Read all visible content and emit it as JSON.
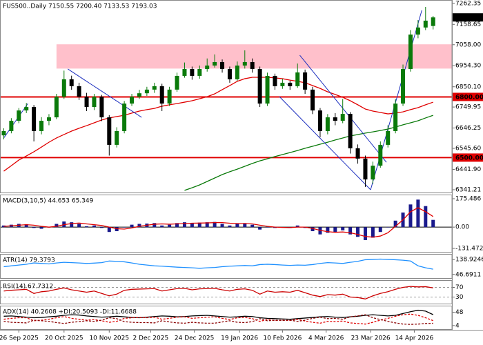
{
  "chart_data": [
    {
      "type": "candlestick",
      "title": "FUS500..Daily 7150.55 7200.40 7133.53 7193.03",
      "xlim": [
        -0.5,
        59.5
      ],
      "xticks": [
        {
          "value": 2,
          "label": "26 Sep 2025"
        },
        {
          "value": 8,
          "label": "20 Oct 2025"
        },
        {
          "value": 14,
          "label": "10 Nov 2025"
        },
        {
          "value": 19.5,
          "label": "2 Dec 2025"
        },
        {
          "value": 25.3,
          "label": "24 Dec 2025"
        },
        {
          "value": 31.3,
          "label": "19 Jan 2026"
        },
        {
          "value": 37,
          "label": "10 Feb 2026"
        },
        {
          "value": 42.8,
          "label": "4 Mar 2026"
        },
        {
          "value": 48.7,
          "label": "23 Mar 2026"
        },
        {
          "value": 54.5,
          "label": "14 Apr 2026"
        }
      ],
      "ylim": [
        6324,
        7279
      ],
      "yticks": [
        7262.35,
        7158.65,
        {
          "value": 7058,
          "label": "7058.00"
        },
        {
          "value": 6954.3,
          "label": "6954.30"
        },
        {
          "value": 6850.1,
          "label": "6850.10"
        },
        6749.95,
        6646.25,
        {
          "value": 6545.6,
          "label": "6545.60"
        },
        {
          "value": 6441.9,
          "label": "6441.90"
        },
        6341.21
      ],
      "up_color": "#0a7a0a",
      "down_color": "#000000",
      "ohlc": [
        [
          6610,
          6645,
          6590,
          6631
        ],
        [
          6631,
          6695,
          6620,
          6682
        ],
        [
          6682,
          6745,
          6670,
          6733
        ],
        [
          6733,
          6770,
          6720,
          6750
        ],
        [
          6750,
          6760,
          6580,
          6631
        ],
        [
          6631,
          6700,
          6615,
          6682
        ],
        [
          6682,
          6715,
          6660,
          6699
        ],
        [
          6699,
          6815,
          6690,
          6801
        ],
        [
          6801,
          6930,
          6790,
          6887
        ],
        [
          6887,
          6905,
          6835,
          6853
        ],
        [
          6853,
          6870,
          6785,
          6801
        ],
        [
          6801,
          6820,
          6730,
          6750
        ],
        [
          6750,
          6815,
          6735,
          6801
        ],
        [
          6801,
          6810,
          6680,
          6699
        ],
        [
          6699,
          6710,
          6510,
          6563
        ],
        [
          6563,
          6650,
          6550,
          6631
        ],
        [
          6631,
          6780,
          6620,
          6767
        ],
        [
          6767,
          6815,
          6755,
          6801
        ],
        [
          6801,
          6835,
          6790,
          6818
        ],
        [
          6818,
          6850,
          6805,
          6836
        ],
        [
          6836,
          6870,
          6820,
          6853
        ],
        [
          6853,
          6865,
          6730,
          6767
        ],
        [
          6767,
          6850,
          6755,
          6836
        ],
        [
          6836,
          6920,
          6825,
          6904
        ],
        [
          6904,
          6970,
          6895,
          6938
        ],
        [
          6938,
          6950,
          6885,
          6904
        ],
        [
          6904,
          6955,
          6890,
          6938
        ],
        [
          6938,
          6990,
          6925,
          6955
        ],
        [
          6955,
          7010,
          6945,
          6972
        ],
        [
          6972,
          6985,
          6920,
          6938
        ],
        [
          6938,
          6950,
          6870,
          6887
        ],
        [
          6887,
          6975,
          6880,
          6955
        ],
        [
          6955,
          7030,
          6940,
          6972
        ],
        [
          6972,
          6990,
          6920,
          6938
        ],
        [
          6938,
          6950,
          6750,
          6767
        ],
        [
          6767,
          6920,
          6755,
          6904
        ],
        [
          6904,
          6915,
          6835,
          6853
        ],
        [
          6853,
          6890,
          6840,
          6870
        ],
        [
          6870,
          6880,
          6835,
          6853
        ],
        [
          6853,
          6965,
          6845,
          6921
        ],
        [
          6921,
          6935,
          6815,
          6836
        ],
        [
          6836,
          6850,
          6715,
          6733
        ],
        [
          6733,
          6745,
          6600,
          6631
        ],
        [
          6631,
          6715,
          6615,
          6699
        ],
        [
          6699,
          6720,
          6660,
          6682
        ],
        [
          6682,
          6790,
          6670,
          6716
        ],
        [
          6716,
          6725,
          6520,
          6546
        ],
        [
          6546,
          6565,
          6470,
          6495
        ],
        [
          6495,
          6510,
          6355,
          6392
        ],
        [
          6392,
          6480,
          6370,
          6460
        ],
        [
          6460,
          6580,
          6450,
          6563
        ],
        [
          6563,
          6660,
          6550,
          6631
        ],
        [
          6631,
          6790,
          6620,
          6767
        ],
        [
          6767,
          6960,
          6755,
          6938
        ],
        [
          6938,
          7130,
          6925,
          7108
        ],
        [
          7108,
          7180,
          7090,
          7143
        ],
        [
          7143,
          7245,
          7130,
          7177
        ],
        [
          7150.55,
          7200.4,
          7133.53,
          7193.03
        ]
      ],
      "lines": [
        {
          "color": "#e00000",
          "values": [
            6433,
            6460,
            6488,
            6508,
            6529,
            6552,
            6576,
            6597,
            6614,
            6631,
            6645,
            6658,
            6672,
            6686,
            6696,
            6703,
            6709,
            6720,
            6730,
            6737,
            6743,
            6754,
            6761,
            6767,
            6774,
            6781,
            6791,
            6801,
            6815,
            6836,
            6856,
            6877,
            6890,
            6897,
            6897,
            6897,
            6894,
            6890,
            6883,
            6877,
            6870,
            6856,
            6842,
            6825,
            6812,
            6798,
            6781,
            6761,
            6740,
            6730,
            6723,
            6716,
            6720,
            6726,
            6737,
            6747,
            6761,
            6774
          ]
        },
        {
          "color": "#0a7a0a",
          "values": [
            null,
            null,
            null,
            null,
            null,
            null,
            null,
            null,
            null,
            null,
            null,
            null,
            null,
            null,
            null,
            null,
            null,
            null,
            null,
            null,
            null,
            null,
            null,
            null,
            6338,
            6351,
            6365,
            6382,
            6399,
            6416,
            6430,
            6443,
            6457,
            6471,
            6484,
            6494,
            6505,
            6515,
            6525,
            6535,
            6546,
            6556,
            6566,
            6576,
            6587,
            6597,
            6607,
            6614,
            6621,
            6627,
            6634,
            6641,
            6651,
            6662,
            6672,
            6682,
            6696,
            6709
          ]
        }
      ],
      "zone": {
        "from": 6940,
        "to": 7060,
        "start": 7,
        "color": "#ffc0cb"
      },
      "level_color": "#e00000",
      "levels": [
        {
          "value": 6800,
          "label": "6800.00"
        },
        {
          "value": 6500,
          "label": "6500.00"
        }
      ],
      "trendline_color": "#1c2fbf",
      "trendlines": [
        {
          "x": [
            0,
            3.2
          ],
          "y": [
            6597,
            6767
          ]
        },
        {
          "x": [
            8.5,
            18.3
          ],
          "y": [
            6938,
            6699
          ]
        },
        {
          "x": [
            39.3,
            50.8
          ],
          "y": [
            7006,
            6477
          ]
        },
        {
          "x": [
            36.6,
            48.7
          ],
          "y": [
            6801,
            6341
          ]
        },
        {
          "x": [
            48.7,
            55.5
          ],
          "y": [
            6341,
            7228
          ]
        }
      ],
      "last_price": 7193.03
    },
    {
      "type": "macd",
      "title": "MACD(3,10,5) 44.653 65.349",
      "ylim": [
        -157,
        201
      ],
      "yticks": [
        175.486,
        {
          "value": 0,
          "label": "0.00"
        },
        -131.472
      ],
      "color": "#1a1a8c",
      "signal_color": "#e00000",
      "values": [
        10,
        15,
        20,
        18,
        -5,
        -10,
        0,
        20,
        35,
        30,
        20,
        5,
        10,
        -5,
        -30,
        -25,
        0,
        15,
        20,
        22,
        25,
        10,
        15,
        25,
        30,
        25,
        28,
        30,
        32,
        20,
        10,
        20,
        25,
        15,
        -15,
        0,
        -5,
        0,
        -5,
        10,
        -5,
        -25,
        -45,
        -35,
        -30,
        -20,
        -45,
        -60,
        -80,
        -65,
        -30,
        0,
        40,
        90,
        140,
        170,
        130,
        44.653
      ],
      "signal": [
        5,
        8,
        12,
        15,
        12,
        5,
        0,
        5,
        15,
        22,
        25,
        20,
        15,
        10,
        0,
        -10,
        -12,
        -5,
        5,
        12,
        18,
        20,
        18,
        20,
        22,
        24,
        25,
        26,
        28,
        28,
        24,
        22,
        22,
        20,
        12,
        5,
        0,
        -2,
        -3,
        0,
        0,
        -8,
        -20,
        -28,
        -32,
        -30,
        -35,
        -45,
        -58,
        -62,
        -55,
        -35,
        5,
        45,
        95,
        120,
        95,
        65.349
      ]
    },
    {
      "type": "line",
      "title": "ATR(14) 79.3793",
      "ylim": [
        20,
        174
      ],
      "yticks": [
        138.9246,
        46.6911
      ],
      "color": "#1e90ff",
      "values": [
        95,
        100,
        105,
        110,
        118,
        115,
        112,
        118,
        122,
        120,
        118,
        115,
        117,
        120,
        130,
        128,
        125,
        118,
        110,
        105,
        100,
        98,
        95,
        92,
        90,
        88,
        85,
        88,
        90,
        95,
        98,
        100,
        102,
        100,
        108,
        110,
        108,
        105,
        103,
        105,
        104,
        108,
        115,
        120,
        118,
        115,
        122,
        128,
        138,
        140,
        142,
        140,
        138,
        135,
        130,
        100,
        88,
        79.3793
      ]
    },
    {
      "type": "line",
      "title": "RSI(14) 67.7312",
      "ylim": [
        0,
        100
      ],
      "yticks": [
        30,
        70
      ],
      "grid": true,
      "color": "#cc0000",
      "values": [
        55,
        58,
        60,
        62,
        45,
        52,
        55,
        62,
        68,
        60,
        55,
        50,
        55,
        45,
        35,
        42,
        58,
        62,
        63,
        64,
        65,
        55,
        60,
        65,
        66,
        60,
        64,
        65,
        66,
        60,
        55,
        62,
        64,
        58,
        42,
        55,
        50,
        52,
        50,
        58,
        48,
        38,
        32,
        40,
        38,
        42,
        30,
        28,
        22,
        35,
        45,
        52,
        62,
        70,
        74,
        72,
        73,
        67.7312
      ]
    },
    {
      "type": "line",
      "title": "ADX(14) 40.2608 +DI:20.5093 -DI:11.6688",
      "ylim": [
        -10,
        70
      ],
      "yticks": [
        48,
        4
      ],
      "series": [
        {
          "color": "#000000",
          "values": [
            35,
            36,
            34,
            32,
            30,
            31,
            33,
            35,
            38,
            40,
            39,
            36,
            34,
            32,
            33,
            35,
            33,
            31,
            30,
            32,
            34,
            36,
            35,
            33,
            34,
            36,
            37,
            38,
            36,
            34,
            32,
            33,
            35,
            34,
            30,
            28,
            27,
            26,
            25,
            27,
            29,
            31,
            33,
            34,
            32,
            31,
            33,
            35,
            38,
            40,
            38,
            36,
            38,
            44,
            50,
            55,
            52,
            40.2608
          ]
        },
        {
          "color": "#e00000",
          "dashed": true,
          "values": [
            25,
            28,
            30,
            30,
            20,
            22,
            25,
            30,
            34,
            28,
            25,
            22,
            24,
            20,
            15,
            18,
            28,
            30,
            31,
            30,
            32,
            25,
            28,
            32,
            33,
            28,
            30,
            32,
            33,
            28,
            24,
            30,
            31,
            27,
            18,
            24,
            21,
            22,
            21,
            25,
            19,
            15,
            12,
            18,
            17,
            19,
            13,
            11,
            9,
            15,
            22,
            28,
            35,
            40,
            42,
            38,
            30,
            20.5093
          ]
        },
        {
          "color": "#8b0000",
          "dashed": true,
          "values": [
            18,
            15,
            14,
            13,
            22,
            20,
            18,
            14,
            11,
            15,
            17,
            20,
            18,
            22,
            30,
            27,
            17,
            15,
            14,
            14,
            13,
            20,
            16,
            13,
            12,
            15,
            13,
            12,
            12,
            16,
            20,
            15,
            14,
            17,
            27,
            20,
            22,
            21,
            22,
            18,
            22,
            28,
            32,
            27,
            28,
            25,
            33,
            36,
            40,
            30,
            24,
            18,
            13,
            9,
            8,
            9,
            11,
            11.6688
          ]
        }
      ]
    }
  ]
}
